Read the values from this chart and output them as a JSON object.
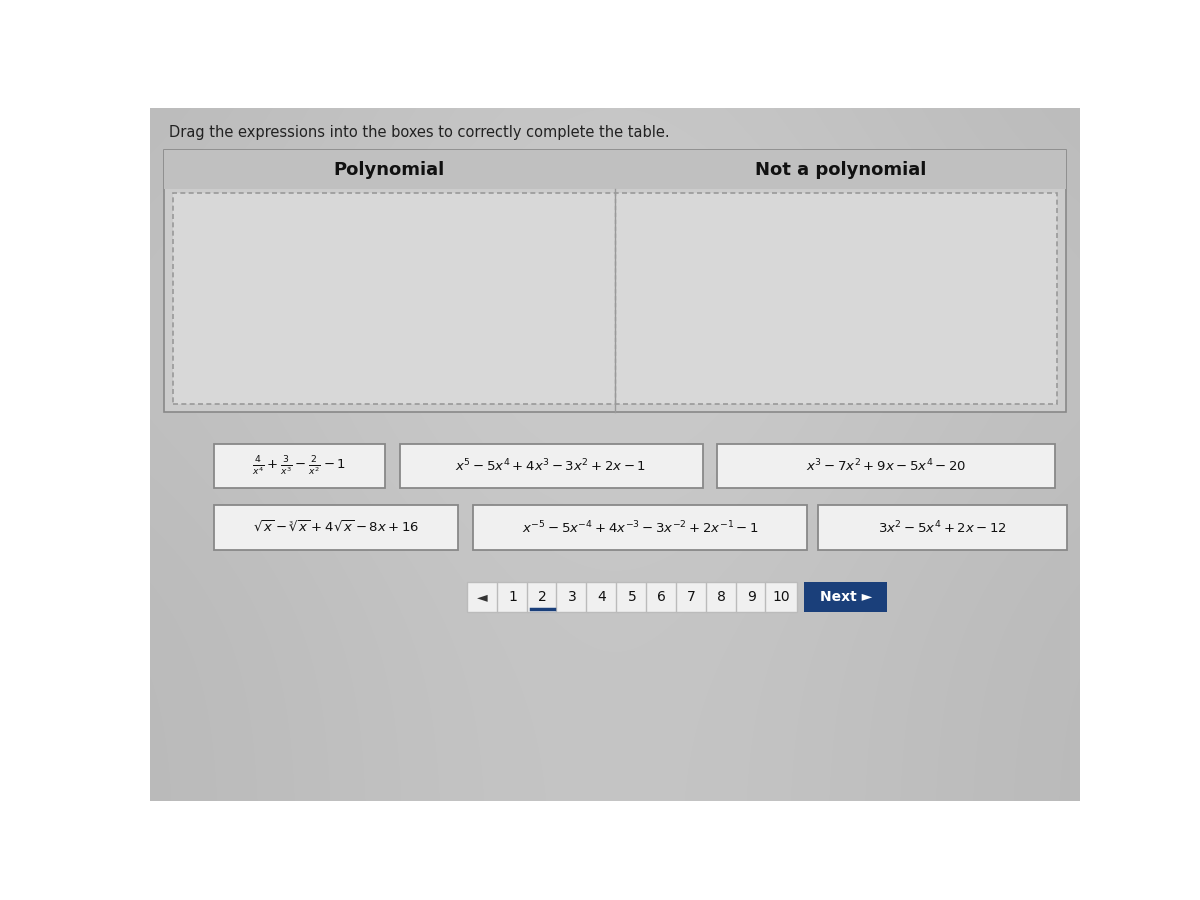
{
  "title_text": "Drag the expressions into the boxes to correctly complete the table.",
  "col1_header": "Polynomial",
  "col2_header": "Not a polynomial",
  "bg_color": "#b8b8b8",
  "panel_bg": "#c8c8c8",
  "drop_bg": "#e0e0e0",
  "card_bg": "#f0f0f0",
  "card_border": "#888888",
  "header_text_color": "#111111",
  "row1_cards": [
    "$\\frac{4}{x^4}+\\frac{3}{x^3}-\\frac{2}{x^2}-1$",
    "$x^5-5x^4+4x^3-3x^2+2x-1$",
    "$x^3-7x^2+9x-5x^4-20$"
  ],
  "row2_cards": [
    "$\\sqrt{x}-\\sqrt[3]{x}+4\\sqrt{x}-8x+16$",
    "$x^{-5}-5x^{-4}+4x^{-3}-3x^{-2}+2x^{-1}-1$",
    "$3x^2-5x^4+2x-12$"
  ],
  "pagination": [
    "1",
    "2",
    "3",
    "4",
    "5",
    "6",
    "7",
    "8",
    "9",
    "10"
  ],
  "active_page": "2",
  "prev_arrow": "◄",
  "next_text": "Next ►",
  "next_bg": "#1a3f7a",
  "next_text_color": "#ffffff",
  "active_page_underline": "#1a3f7a"
}
